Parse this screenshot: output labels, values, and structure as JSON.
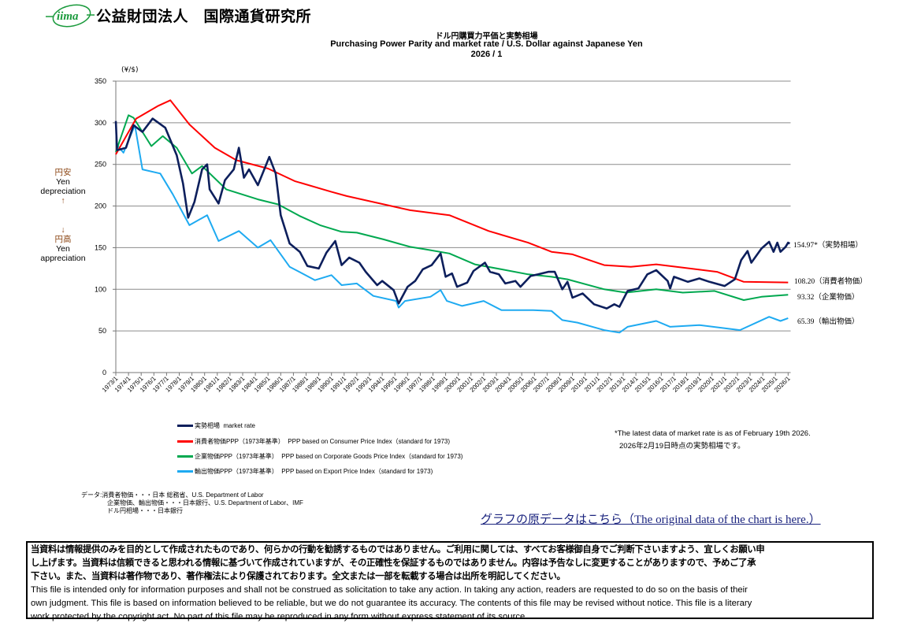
{
  "header": {
    "logo_text": "iima",
    "org_name": "公益財団法人　国際通貨研究所"
  },
  "titles": {
    "jp": "ドル円購買力平価と実勢相場",
    "en": "Purchasing Power Parity and market rate / U.S. Dollar against Japanese Yen",
    "date": "2026 / 1"
  },
  "side_labels": {
    "top": [
      "円安",
      "Yen",
      "depreciation",
      "↑"
    ],
    "bottom": [
      "↓",
      "円高",
      "Yen",
      "appreciation"
    ]
  },
  "legend": [
    {
      "label": "実勢相場",
      "label_en": "market rate",
      "color": "#0d1f5c"
    },
    {
      "label": "消費者物価PPP（1973年基準）",
      "label_en": "PPP based on Consumer Price Index（standard for 1973)",
      "color": "#ff0000"
    },
    {
      "label": "企業物価PPP（1973年基準）",
      "label_en": "PPP based on Corporate Goods Price Index（standard for 1973)",
      "color": "#00a84f"
    },
    {
      "label": "輸出物価PPP（1973年基準）",
      "label_en": "PPP based on Export Price Index（standard for 1973)",
      "color": "#1eaaf1"
    }
  ],
  "notes": {
    "latest_en": "*The latest data of market rate is as of February 19th 2026.",
    "latest_jp": "2026年2月19日時点の実勢相場です。"
  },
  "sources": [
    "データ:消費者物価・・・日本 総務省、U.S. Department of Labor",
    "企業物価、輸出物価・・・日本銀行、U.S. Department of Labor、IMF",
    "ドル円相場・・・日本銀行"
  ],
  "link_text": "グラフの原データはこちら（The original data of the chart is here.）",
  "disclaimer": {
    "jp": [
      "当資料は情報提供のみを目的として作成されたものであり、何らかの行動を勧誘するものではありません。ご利用に関しては、すべてお客様御自身でご判断下さいますよう、宜しくお願い申",
      "し上げます。当資料は信頼できると思われる情報に基づいて作成されていますが、その正確性を保証するものではありません。内容は予告なしに変更することがありますので、予めご了承",
      "下さい。また、当資料は著作物であり、著作権法により保護されております。全文または一部を転載する場合は出所を明記してください。"
    ],
    "en": [
      "This file is intended only for information purposes and shall not be construed as solicitation to take any action. In taking any action, readers are requested to do so on the basis of their",
      "own judgment. This file is based on information believed to be reliable, but we do not guarantee its accuracy. The contents of this file may be revised without notice. This file is a literary",
      "work protected by the copyright act. No part of this file may be reproduced in any form without express statement of its source."
    ]
  },
  "chart_data": {
    "type": "line",
    "title": "ドル円購買力平価と実勢相場 / Purchasing Power Parity and market rate / U.S. Dollar against Japanese Yen",
    "ylabel": "(¥/$)",
    "ylim": [
      0,
      350
    ],
    "y_ticks": [
      "0",
      "50",
      "100",
      "150",
      "200",
      "250",
      "300",
      "350"
    ],
    "xlim": [
      1973.0,
      2026.2
    ],
    "x_ticks": [
      "1973/1",
      "1974/1",
      "1975/1",
      "1976/1",
      "1977/1",
      "1978/1",
      "1979/1",
      "1980/1",
      "1981/1",
      "1982/1",
      "1983/1",
      "1984/1",
      "1985/1",
      "1986/1",
      "1987/1",
      "1988/1",
      "1989/1",
      "1990/1",
      "1991/1",
      "1992/1",
      "1993/1",
      "1994/1",
      "1995/1",
      "1996/1",
      "1997/1",
      "1998/1",
      "1999/1",
      "2000/1",
      "2001/1",
      "2002/1",
      "2003/1",
      "2004/1",
      "2005/1",
      "2006/1",
      "2007/1",
      "2008/1",
      "2009/1",
      "2010/1",
      "2011/1",
      "2012/1",
      "2013/1",
      "2014/1",
      "2015/1",
      "2016/1",
      "2017/1",
      "2018/1",
      "2019/1",
      "2020/1",
      "2021/1",
      "2022/1",
      "2023/1",
      "2024/1",
      "2025/1",
      "2026/1"
    ],
    "grid": true,
    "legend_position": "bottom-left",
    "series": [
      {
        "name": "実勢相場 market rate",
        "color": "#0d1f5c",
        "end_label": "154.97*（実勢相場）",
        "points": [
          [
            1973.0,
            302
          ],
          [
            1973.1,
            267
          ],
          [
            1973.8,
            270
          ],
          [
            1974.4,
            297
          ],
          [
            1975.1,
            289
          ],
          [
            1975.9,
            305
          ],
          [
            1976.9,
            294
          ],
          [
            1977.8,
            261
          ],
          [
            1978.3,
            227
          ],
          [
            1978.7,
            186
          ],
          [
            1979.2,
            205
          ],
          [
            1979.8,
            244
          ],
          [
            1980.2,
            250
          ],
          [
            1980.4,
            220
          ],
          [
            1981.1,
            203
          ],
          [
            1981.6,
            231
          ],
          [
            1982.3,
            244
          ],
          [
            1982.7,
            270
          ],
          [
            1983.1,
            234
          ],
          [
            1983.5,
            244
          ],
          [
            1984.2,
            225
          ],
          [
            1985.1,
            259
          ],
          [
            1985.6,
            239
          ],
          [
            1986.0,
            189
          ],
          [
            1986.7,
            155
          ],
          [
            1987.5,
            145
          ],
          [
            1988.1,
            128
          ],
          [
            1989.0,
            125
          ],
          [
            1989.6,
            144
          ],
          [
            1990.3,
            158
          ],
          [
            1990.8,
            129
          ],
          [
            1991.4,
            138
          ],
          [
            1992.2,
            132
          ],
          [
            1992.7,
            121
          ],
          [
            1993.6,
            105
          ],
          [
            1994.0,
            110
          ],
          [
            1994.9,
            99
          ],
          [
            1995.3,
            83
          ],
          [
            1996.0,
            103
          ],
          [
            1996.6,
            110
          ],
          [
            1997.2,
            124
          ],
          [
            1997.9,
            129
          ],
          [
            1998.6,
            143
          ],
          [
            1999.0,
            115
          ],
          [
            1999.5,
            119
          ],
          [
            1999.9,
            103
          ],
          [
            2000.7,
            108
          ],
          [
            2001.2,
            122
          ],
          [
            2002.1,
            132
          ],
          [
            2002.5,
            121
          ],
          [
            2003.2,
            118
          ],
          [
            2003.7,
            107
          ],
          [
            2004.5,
            110
          ],
          [
            2004.9,
            103
          ],
          [
            2005.7,
            116
          ],
          [
            2006.3,
            118
          ],
          [
            2007.1,
            121
          ],
          [
            2007.6,
            121
          ],
          [
            2008.2,
            100
          ],
          [
            2008.6,
            109
          ],
          [
            2009.0,
            90
          ],
          [
            2009.8,
            95
          ],
          [
            2010.7,
            82
          ],
          [
            2011.7,
            77
          ],
          [
            2012.3,
            82
          ],
          [
            2012.7,
            79
          ],
          [
            2013.35,
            98
          ],
          [
            2014.2,
            101
          ],
          [
            2014.9,
            118
          ],
          [
            2015.6,
            123
          ],
          [
            2016.5,
            110
          ],
          [
            2016.7,
            101
          ],
          [
            2017.0,
            115
          ],
          [
            2018.1,
            109
          ],
          [
            2019.0,
            113
          ],
          [
            2019.8,
            109
          ],
          [
            2021.0,
            104
          ],
          [
            2021.8,
            112
          ],
          [
            2022.3,
            135
          ],
          [
            2022.8,
            146
          ],
          [
            2023.1,
            132
          ],
          [
            2023.9,
            149
          ],
          [
            2024.5,
            157
          ],
          [
            2024.85,
            145
          ],
          [
            2025.15,
            156
          ],
          [
            2025.4,
            145
          ],
          [
            2025.8,
            151
          ],
          [
            2026.0,
            156
          ],
          [
            2026.13,
            154.97
          ]
        ]
      },
      {
        "name": "消費者物価PPP（1973年基準） PPP based on Consumer Price Index",
        "color": "#ff0000",
        "end_label": "108.20（消費者物価）",
        "points": [
          [
            1973.0,
            262
          ],
          [
            1974.6,
            305
          ],
          [
            1976.3,
            320
          ],
          [
            1977.3,
            327
          ],
          [
            1978.8,
            298
          ],
          [
            1980.8,
            270
          ],
          [
            1982.5,
            255
          ],
          [
            1985.0,
            245
          ],
          [
            1987.1,
            230
          ],
          [
            1990.0,
            217
          ],
          [
            1991.2,
            212
          ],
          [
            1996.2,
            195
          ],
          [
            1999.3,
            189
          ],
          [
            2002.4,
            170
          ],
          [
            2005.5,
            156
          ],
          [
            2007.35,
            145
          ],
          [
            2009.0,
            142
          ],
          [
            2011.5,
            129
          ],
          [
            2013.6,
            127
          ],
          [
            2015.6,
            130
          ],
          [
            2017.7,
            126
          ],
          [
            2020.4,
            121
          ],
          [
            2022.5,
            109
          ],
          [
            2026.0,
            108.2
          ]
        ]
      },
      {
        "name": "企業物価PPP（1973年基準） PPP based on Corporate Goods Price Index",
        "color": "#00a84f",
        "end_label": "93.32（企業物価）",
        "points": [
          [
            1973.0,
            265
          ],
          [
            1974.0,
            309
          ],
          [
            1974.4,
            306
          ],
          [
            1975.8,
            272
          ],
          [
            1976.7,
            284
          ],
          [
            1977.8,
            270
          ],
          [
            1979.0,
            239
          ],
          [
            1979.8,
            248
          ],
          [
            1981.7,
            220
          ],
          [
            1984.2,
            208
          ],
          [
            1985.8,
            202
          ],
          [
            1987.5,
            188
          ],
          [
            1989.1,
            177
          ],
          [
            1990.8,
            169
          ],
          [
            1992.0,
            168
          ],
          [
            1994.1,
            160
          ],
          [
            1996.2,
            151
          ],
          [
            1997.4,
            148
          ],
          [
            1999.3,
            143
          ],
          [
            2001.3,
            130
          ],
          [
            2003.4,
            124
          ],
          [
            2005.5,
            118
          ],
          [
            2007.35,
            115
          ],
          [
            2008.6,
            112
          ],
          [
            2011.5,
            100
          ],
          [
            2013.2,
            96
          ],
          [
            2015.6,
            100
          ],
          [
            2017.7,
            96
          ],
          [
            2020.2,
            98
          ],
          [
            2022.5,
            87
          ],
          [
            2023.9,
            91
          ],
          [
            2026.0,
            93.32
          ]
        ]
      },
      {
        "name": "輸出物価PPP（1973年基準） PPP based on Export Price Index",
        "color": "#1eaaf1",
        "end_label": "65.39（輸出物価）",
        "points": [
          [
            1973.0,
            275
          ],
          [
            1973.6,
            264
          ],
          [
            1974.5,
            297
          ],
          [
            1975.1,
            244
          ],
          [
            1976.5,
            239
          ],
          [
            1977.5,
            214
          ],
          [
            1978.8,
            177
          ],
          [
            1980.2,
            189
          ],
          [
            1981.1,
            158
          ],
          [
            1982.7,
            170
          ],
          [
            1984.2,
            150
          ],
          [
            1985.2,
            159
          ],
          [
            1986.7,
            127
          ],
          [
            1988.7,
            111
          ],
          [
            1990.0,
            117
          ],
          [
            1990.8,
            105
          ],
          [
            1992.0,
            107
          ],
          [
            1993.3,
            92
          ],
          [
            1995.1,
            86
          ],
          [
            1995.3,
            78
          ],
          [
            1995.8,
            86
          ],
          [
            1997.8,
            91
          ],
          [
            1998.6,
            99
          ],
          [
            1999.1,
            86
          ],
          [
            2000.3,
            80
          ],
          [
            2002.0,
            86
          ],
          [
            2003.4,
            75
          ],
          [
            2005.9,
            75
          ],
          [
            2007.35,
            74
          ],
          [
            2008.2,
            63
          ],
          [
            2009.4,
            60
          ],
          [
            2011.5,
            51
          ],
          [
            2012.7,
            48
          ],
          [
            2013.35,
            55
          ],
          [
            2015.6,
            62
          ],
          [
            2016.7,
            55
          ],
          [
            2019.0,
            57
          ],
          [
            2022.2,
            51
          ],
          [
            2024.5,
            67
          ],
          [
            2025.4,
            62
          ],
          [
            2026.0,
            65.39
          ]
        ]
      }
    ]
  }
}
